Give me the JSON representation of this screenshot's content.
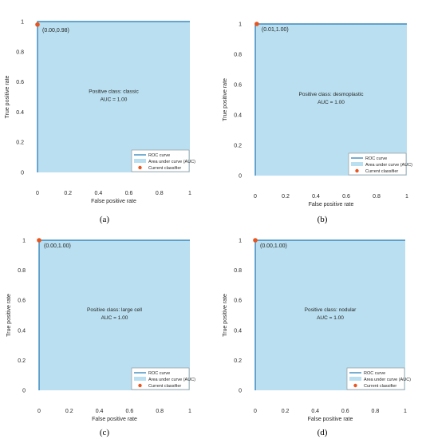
{
  "colors": {
    "auc_fill": "#b9dff0",
    "roc_line": "#1f77b4",
    "classifier_point": "#e8551f",
    "axis": "#262626"
  },
  "chart_data": [
    {
      "type": "area",
      "panel_caption": "(a)",
      "xlabel": "False positive rate",
      "ylabel": "True positive rate",
      "xlim": [
        0,
        1
      ],
      "ylim": [
        0,
        1
      ],
      "x_ticks": [
        "0",
        "0.2",
        "0.4",
        "0.6",
        "0.8",
        "1"
      ],
      "y_ticks": [
        "0",
        "0.2",
        "0.4",
        "0.6",
        "0.8",
        "1"
      ],
      "roc_curve": {
        "x": [
          0,
          0,
          1
        ],
        "y": [
          0,
          1,
          1
        ]
      },
      "current_classifier": {
        "x": 0.0,
        "y": 0.98,
        "label": "(0.00,0.98)"
      },
      "annotation_class": "Positive class: classic",
      "annotation_auc": "AUC = 1.00",
      "legend": [
        "ROC curve",
        "Area under curve (AUC)",
        "Current classifier"
      ],
      "legend_position": "bottom-right",
      "grid": false
    },
    {
      "type": "area",
      "panel_caption": "(b)",
      "xlabel": "False positive rate",
      "ylabel": "True positive rate",
      "xlim": [
        0,
        1
      ],
      "ylim": [
        0,
        1
      ],
      "x_ticks": [
        "0",
        "0.2",
        "0.4",
        "0.6",
        "0.8",
        "1"
      ],
      "y_ticks": [
        "0",
        "0.2",
        "0.4",
        "0.6",
        "0.8",
        "1"
      ],
      "roc_curve": {
        "x": [
          0,
          0,
          1
        ],
        "y": [
          0,
          1,
          1
        ]
      },
      "current_classifier": {
        "x": 0.01,
        "y": 1.0,
        "label": "(0.01,1.00)"
      },
      "annotation_class": "Positive class: desmoplastic",
      "annotation_auc": "AUC = 1.00",
      "legend": [
        "ROC curve",
        "Area under curve (AUC)",
        "Current classifier"
      ],
      "legend_position": "bottom-right",
      "grid": false
    },
    {
      "type": "area",
      "panel_caption": "(c)",
      "xlabel": "False positive rate",
      "ylabel": "True positive rate",
      "xlim": [
        0,
        1
      ],
      "ylim": [
        0,
        1
      ],
      "x_ticks": [
        "0",
        "0.2",
        "0.4",
        "0.6",
        "0.8",
        "1"
      ],
      "y_ticks": [
        "0",
        "0.2",
        "0.4",
        "0.6",
        "0.8",
        "1"
      ],
      "roc_curve": {
        "x": [
          0,
          0,
          1
        ],
        "y": [
          0,
          1,
          1
        ]
      },
      "current_classifier": {
        "x": 0.0,
        "y": 1.0,
        "label": "(0.00,1.00)"
      },
      "annotation_class": "Positive class: large cell",
      "annotation_auc": "AUC = 1.00",
      "legend": [
        "ROC curve",
        "Area under curve (AUC)",
        "Current classifier"
      ],
      "legend_position": "bottom-right",
      "grid": false
    },
    {
      "type": "area",
      "panel_caption": "(d)",
      "xlabel": "False positive rate",
      "ylabel": "True positive rate",
      "xlim": [
        0,
        1
      ],
      "ylim": [
        0,
        1
      ],
      "x_ticks": [
        "0",
        "0.2",
        "0.4",
        "0.6",
        "0.8",
        "1"
      ],
      "y_ticks": [
        "0",
        "0.2",
        "0.4",
        "0.6",
        "0.8",
        "1"
      ],
      "roc_curve": {
        "x": [
          0,
          0,
          1
        ],
        "y": [
          0,
          1,
          1
        ]
      },
      "current_classifier": {
        "x": 0.0,
        "y": 1.0,
        "label": "(0.00,1.00)"
      },
      "annotation_class": "Positive class: nodular",
      "annotation_auc": "AUC = 1.00",
      "legend": [
        "ROC curve",
        "Area under curve (AUC)",
        "Current classifier"
      ],
      "legend_position": "bottom-right",
      "grid": false
    }
  ]
}
